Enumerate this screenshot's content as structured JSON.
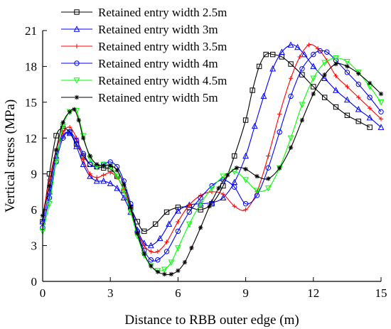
{
  "chart_data": {
    "type": "line",
    "xlabel": "Distance to RBB outer edge (m)",
    "ylabel": "Vertical stress (MPa)",
    "xlim": [
      0,
      15
    ],
    "ylim": [
      0,
      21
    ],
    "xticks": [
      0,
      3,
      6,
      9,
      12,
      15
    ],
    "yticks": [
      0,
      3,
      6,
      9,
      12,
      15,
      18,
      21
    ],
    "grid": false,
    "legend_position": "top-left",
    "series": [
      {
        "name": "Retained entry width 2.5m",
        "color": "#000000",
        "marker": "square",
        "x": [
          0,
          0.3,
          0.6,
          0.9,
          1.2,
          1.5,
          1.8,
          2.1,
          2.4,
          2.7,
          3.0,
          3.3,
          3.6,
          3.9,
          4.2,
          4.5,
          5.0,
          5.5,
          6.0,
          6.5,
          7.0,
          7.5,
          8.0,
          8.5,
          9.0,
          9.3,
          9.6,
          9.9,
          10.2,
          10.6,
          11.0,
          11.5,
          12.0,
          12.5,
          13.0,
          13.5,
          14.0,
          14.5
        ],
        "y": [
          5.0,
          9.0,
          12.2,
          12.8,
          12.5,
          11.5,
          10.5,
          9.8,
          9.6,
          9.5,
          9.4,
          8.8,
          7.6,
          6.2,
          5.0,
          4.2,
          4.8,
          5.8,
          6.2,
          6.2,
          6.0,
          6.5,
          8.0,
          10.5,
          13.5,
          16.0,
          18.0,
          19.0,
          19.0,
          18.8,
          18.2,
          17.3,
          16.3,
          15.4,
          14.6,
          13.9,
          13.4,
          12.9
        ]
      },
      {
        "name": "Retained entry width 3m",
        "color": "#0000ff",
        "marker": "triangle-up",
        "x": [
          0,
          0.3,
          0.6,
          0.9,
          1.2,
          1.5,
          1.8,
          2.1,
          2.4,
          2.7,
          3.0,
          3.3,
          3.6,
          3.9,
          4.2,
          4.5,
          4.8,
          5.2,
          5.6,
          6.0,
          6.5,
          7.0,
          7.5,
          8.0,
          8.5,
          9.0,
          9.4,
          9.8,
          10.2,
          10.6,
          11.0,
          11.3,
          11.6,
          12.0,
          12.5,
          13.0,
          13.5,
          14.0,
          14.5,
          15.0
        ],
        "y": [
          5.0,
          7.5,
          10.5,
          12.2,
          12.4,
          11.3,
          9.8,
          8.8,
          8.4,
          8.4,
          8.2,
          7.8,
          7.0,
          5.8,
          4.3,
          3.2,
          3.0,
          3.6,
          4.8,
          5.9,
          6.4,
          6.5,
          6.6,
          7.0,
          8.3,
          10.5,
          13.0,
          15.5,
          17.8,
          19.2,
          19.8,
          19.6,
          19.0,
          18.0,
          17.0,
          16.0,
          15.2,
          14.4,
          13.7,
          12.9
        ]
      },
      {
        "name": "Retained entry width 3.5m",
        "color": "#ff0000",
        "marker": "plus",
        "x": [
          0,
          0.3,
          0.6,
          0.9,
          1.2,
          1.5,
          1.8,
          2.1,
          2.4,
          2.7,
          3.0,
          3.3,
          3.6,
          3.9,
          4.2,
          4.5,
          4.8,
          5.1,
          5.5,
          6.0,
          6.5,
          7.0,
          7.5,
          8.0,
          8.5,
          9.0,
          9.5,
          10.0,
          10.5,
          11.0,
          11.4,
          11.8,
          12.2,
          12.6,
          13.0,
          13.5,
          14.0,
          14.5,
          15.0
        ],
        "y": [
          5.5,
          8.5,
          11.0,
          12.5,
          12.9,
          12.0,
          10.2,
          9.0,
          8.7,
          8.9,
          9.1,
          8.7,
          7.7,
          6.0,
          4.2,
          3.0,
          2.5,
          2.5,
          3.3,
          5.0,
          6.4,
          7.2,
          7.5,
          7.3,
          6.3,
          6.0,
          7.5,
          10.5,
          14.0,
          17.0,
          18.8,
          19.8,
          19.5,
          18.5,
          17.2,
          16.3,
          15.4,
          14.5,
          13.6
        ]
      },
      {
        "name": "Retained entry width 4m",
        "color": "#0000ff",
        "marker": "circle",
        "x": [
          0,
          0.3,
          0.6,
          0.9,
          1.2,
          1.5,
          1.8,
          2.1,
          2.4,
          2.7,
          3.0,
          3.3,
          3.6,
          3.9,
          4.2,
          4.5,
          4.8,
          5.1,
          5.5,
          6.0,
          6.5,
          7.0,
          7.5,
          8.0,
          8.5,
          9.0,
          9.5,
          10.0,
          10.5,
          11.0,
          11.5,
          12.0,
          12.3,
          12.6,
          13.0,
          13.5,
          14.0,
          14.5,
          15.0
        ],
        "y": [
          4.5,
          7.0,
          10.0,
          12.0,
          12.5,
          11.8,
          10.7,
          9.8,
          9.6,
          9.8,
          10.0,
          9.6,
          8.4,
          6.5,
          4.2,
          2.6,
          1.8,
          1.8,
          2.5,
          4.2,
          5.8,
          7.0,
          8.0,
          8.5,
          7.9,
          6.5,
          7.2,
          9.5,
          12.5,
          15.5,
          17.8,
          19.0,
          19.3,
          19.2,
          18.5,
          17.5,
          16.5,
          15.4,
          14.2
        ]
      },
      {
        "name": "Retained entry width 4.5m",
        "color": "#00ff00",
        "marker": "triangle-down",
        "x": [
          0,
          0.3,
          0.6,
          0.9,
          1.2,
          1.5,
          1.8,
          2.1,
          2.4,
          2.7,
          3.0,
          3.3,
          3.6,
          3.9,
          4.2,
          4.5,
          4.8,
          5.1,
          5.4,
          5.7,
          6.0,
          6.5,
          7.0,
          7.5,
          8.0,
          8.5,
          9.0,
          9.5,
          10.0,
          10.5,
          11.0,
          11.5,
          12.0,
          12.5,
          13.0,
          13.5,
          14.0,
          14.5,
          15.0
        ],
        "y": [
          4.2,
          6.5,
          10.0,
          13.0,
          14.2,
          14.3,
          12.2,
          10.3,
          9.6,
          9.8,
          9.6,
          8.8,
          7.6,
          5.8,
          3.8,
          2.2,
          1.3,
          0.9,
          1.0,
          1.6,
          2.8,
          4.8,
          6.5,
          7.8,
          8.8,
          9.2,
          8.5,
          7.6,
          7.8,
          9.5,
          12.0,
          14.8,
          17.0,
          18.3,
          18.7,
          18.4,
          17.5,
          16.3,
          15.0
        ]
      },
      {
        "name": "Retained entry width 5m",
        "color": "#000000",
        "marker": "asterisk",
        "x": [
          0,
          0.3,
          0.6,
          0.9,
          1.2,
          1.4,
          1.6,
          1.8,
          2.1,
          2.4,
          2.7,
          3.0,
          3.3,
          3.6,
          3.9,
          4.2,
          4.5,
          4.8,
          5.1,
          5.4,
          5.7,
          6.0,
          6.3,
          6.6,
          7.0,
          7.4,
          7.8,
          8.2,
          8.6,
          9.0,
          9.5,
          10.0,
          10.5,
          11.0,
          11.5,
          12.0,
          12.5,
          13.0,
          13.5,
          14.0,
          14.5,
          15.0
        ],
        "y": [
          5.5,
          8.0,
          11.0,
          13.3,
          14.2,
          14.4,
          13.5,
          12.0,
          10.5,
          9.8,
          9.7,
          9.7,
          9.3,
          8.1,
          6.2,
          4.0,
          2.3,
          1.3,
          0.8,
          0.6,
          0.6,
          0.9,
          1.6,
          2.8,
          4.5,
          6.3,
          7.8,
          8.9,
          9.5,
          9.4,
          8.8,
          8.6,
          9.5,
          11.2,
          13.5,
          15.7,
          17.3,
          18.2,
          18.0,
          17.4,
          16.6,
          15.7
        ]
      }
    ]
  }
}
